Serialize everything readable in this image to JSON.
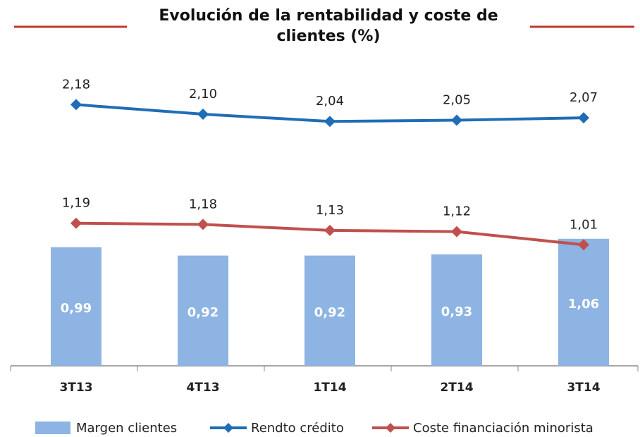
{
  "chart_data": {
    "type": "bar",
    "title": "Evolución de la rentabilidad y coste de clientes (%)",
    "categories": [
      "3T13",
      "4T13",
      "1T14",
      "2T14",
      "3T14"
    ],
    "ylim": [
      0,
      2.5
    ],
    "series": [
      {
        "name": "Margen clientes",
        "type": "bar",
        "color": "#8db4e2",
        "values": [
          0.99,
          0.92,
          0.92,
          0.93,
          1.06
        ],
        "value_labels": [
          "0,99",
          "0,92",
          "0,92",
          "0,93",
          "1,06"
        ]
      },
      {
        "name": "Rendto crédito",
        "type": "line",
        "color": "#1f6db5",
        "values": [
          2.18,
          2.1,
          2.04,
          2.05,
          2.07
        ],
        "value_labels": [
          "2,18",
          "2,10",
          "2,04",
          "2,05",
          "2,07"
        ]
      },
      {
        "name": "Coste financiación minorista",
        "type": "line",
        "color": "#c0504d",
        "values": [
          1.19,
          1.18,
          1.13,
          1.12,
          1.01
        ],
        "value_labels": [
          "1,19",
          "1,18",
          "1,13",
          "1,12",
          "1,01"
        ]
      }
    ]
  }
}
